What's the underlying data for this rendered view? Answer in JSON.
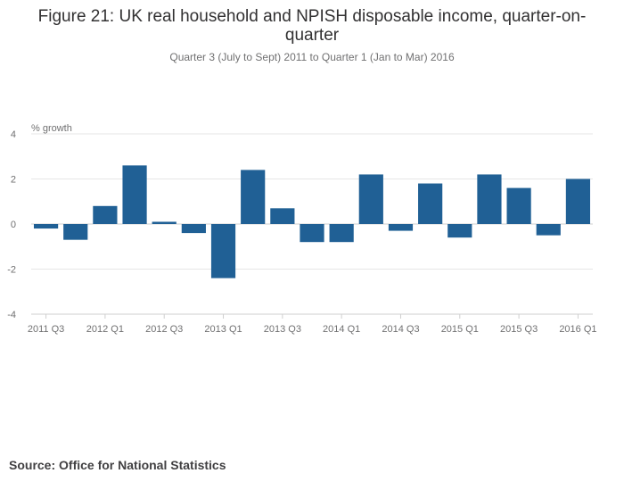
{
  "title": "Figure 21: UK real household and NPISH disposable income, quarter-on-quarter",
  "subtitle": "Quarter 3 (July to Sept) 2011 to Quarter 1 (Jan to Mar) 2016",
  "source": "Source: Office for National Statistics",
  "chart_data": {
    "type": "bar",
    "ylabel": "% growth",
    "ylim": [
      -4,
      4
    ],
    "yticks": [
      4,
      2,
      0,
      -2,
      -4
    ],
    "categories": [
      "2011 Q3",
      "2011 Q4",
      "2012 Q1",
      "2012 Q2",
      "2012 Q3",
      "2012 Q4",
      "2013 Q1",
      "2013 Q2",
      "2013 Q3",
      "2013 Q4",
      "2014 Q1",
      "2014 Q2",
      "2014 Q3",
      "2014 Q4",
      "2015 Q1",
      "2015 Q2",
      "2015 Q3",
      "2015 Q4",
      "2016 Q1"
    ],
    "tick_labels": [
      "2011 Q3",
      "",
      "2012 Q1",
      "",
      "2012 Q3",
      "",
      "2013 Q1",
      "",
      "2013 Q3",
      "",
      "2014 Q1",
      "",
      "2014 Q3",
      "",
      "2015 Q1",
      "",
      "2015 Q3",
      "",
      "2016 Q1"
    ],
    "values": [
      -0.2,
      -0.7,
      0.8,
      2.6,
      0.1,
      -0.4,
      -2.4,
      2.4,
      0.7,
      -0.8,
      -0.8,
      2.2,
      -0.3,
      1.8,
      -0.6,
      2.2,
      1.6,
      -0.5,
      2.0
    ],
    "grid": true,
    "bar_color": "#206095"
  }
}
